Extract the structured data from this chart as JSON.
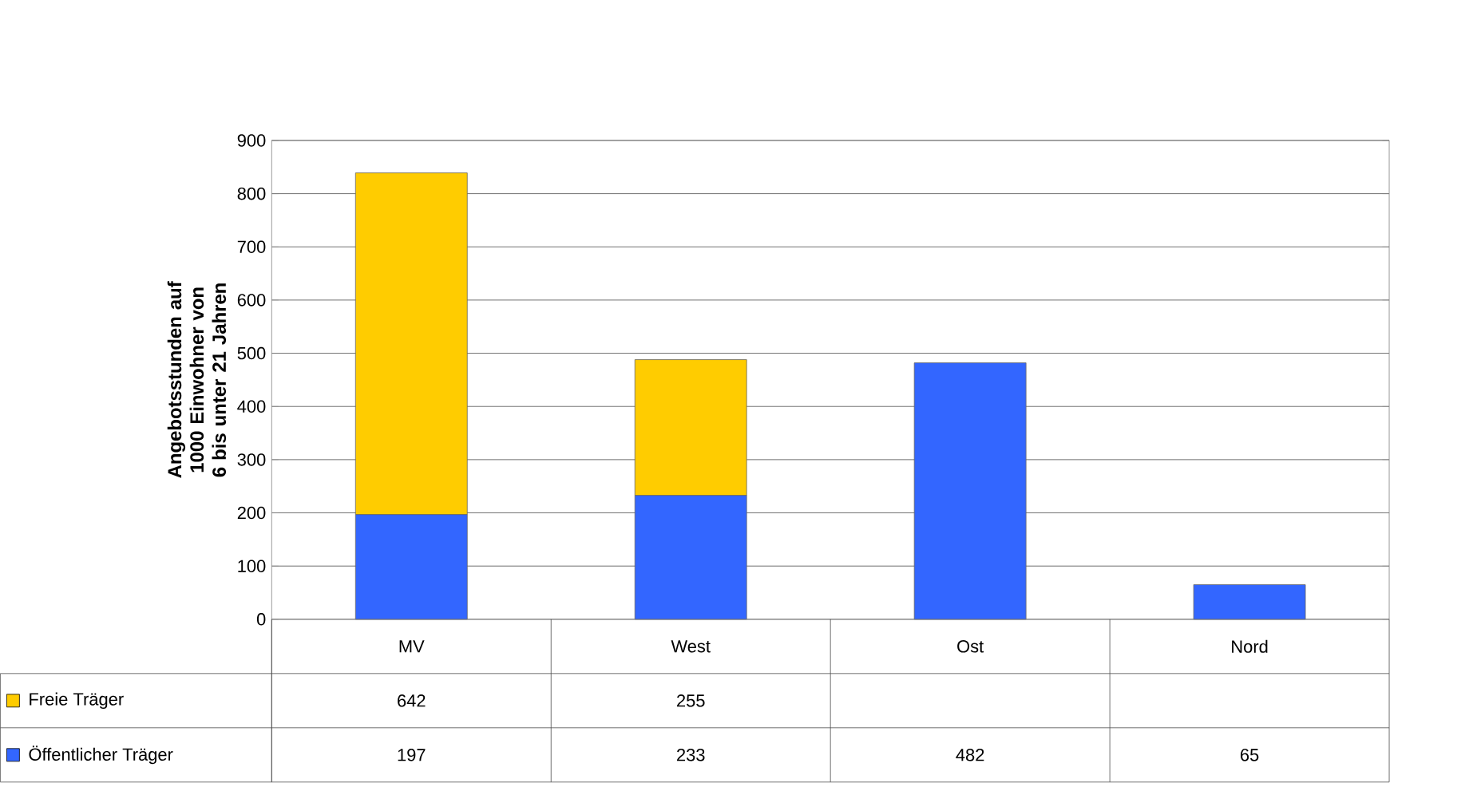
{
  "chart_data": {
    "type": "bar",
    "stacked": true,
    "ylabel": "Angebotsstunden auf 1000 Einwohner von 6 bis unter 21 Jahren",
    "categories": [
      "MV",
      "West",
      "Ost",
      "Nord"
    ],
    "series": [
      {
        "name": "Öffentlicher Träger",
        "color": "#3366ff",
        "values": [
          197,
          233,
          482,
          65
        ]
      },
      {
        "name": "Freie Träger",
        "color": "#ffcc00",
        "values": [
          642,
          255,
          null,
          null
        ]
      }
    ],
    "ylim": [
      0,
      900
    ],
    "yticks": [
      0,
      100,
      200,
      300,
      400,
      500,
      600,
      700,
      800,
      900
    ],
    "grid": "y",
    "legend": "bottom left",
    "data_labels": true
  }
}
